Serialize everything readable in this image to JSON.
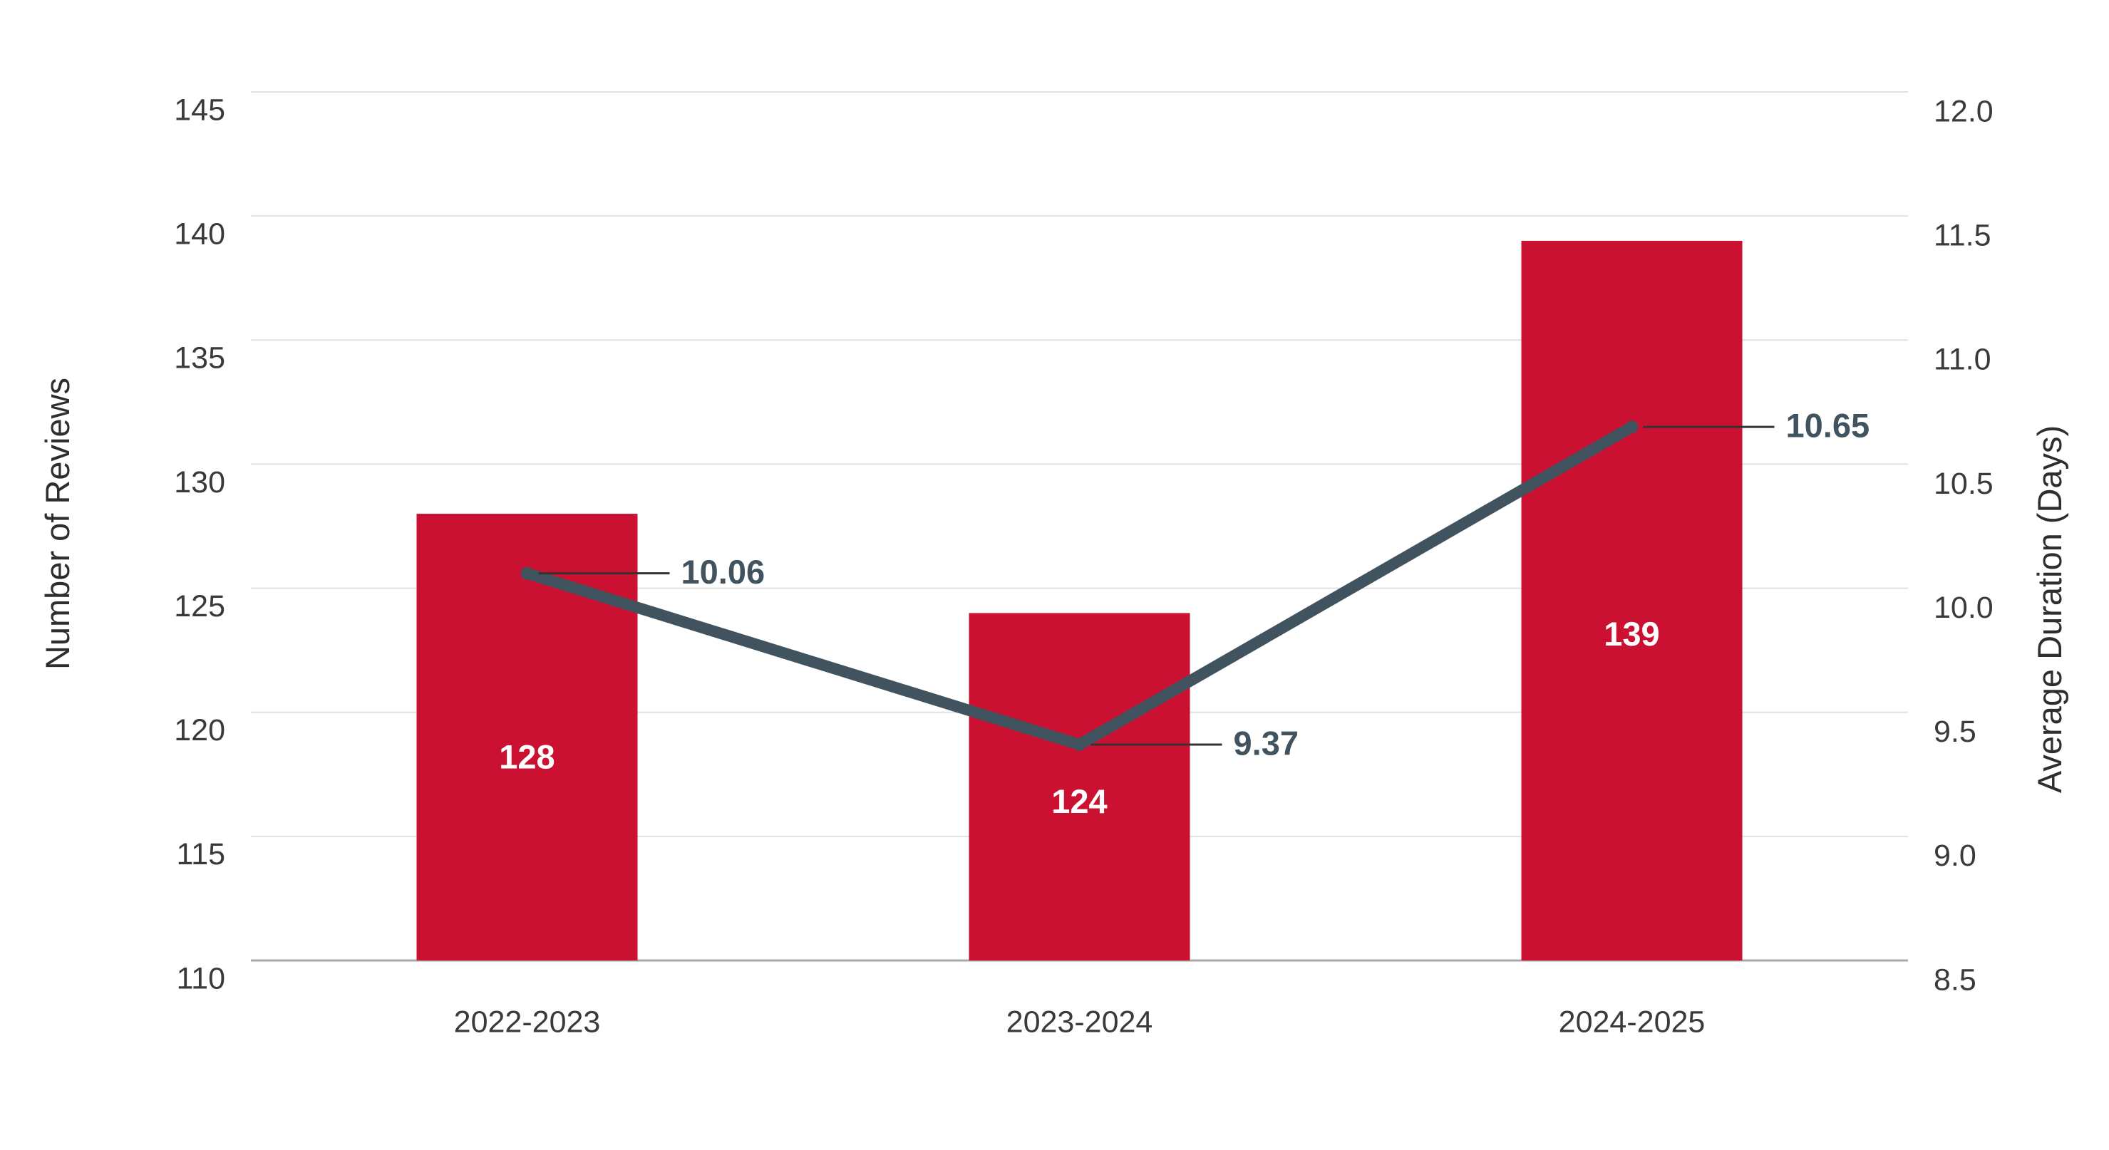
{
  "chart_data": {
    "type": "combo-bar-line",
    "categories": [
      "2022-2023",
      "2023-2024",
      "2024-2025"
    ],
    "series": [
      {
        "name": "Number of Reviews",
        "type": "bar",
        "axis": "left",
        "values": [
          128,
          124,
          139
        ],
        "labels": [
          "128",
          "124",
          "139"
        ],
        "color": "#ca1131"
      },
      {
        "name": "Average Duration (Days)",
        "type": "line",
        "axis": "right",
        "values": [
          10.06,
          9.37,
          10.65
        ],
        "labels": [
          "10.06",
          "9.37",
          "10.65"
        ],
        "color": "#41535f"
      }
    ],
    "left_axis": {
      "title": "Number of Reviews",
      "min": 110,
      "max": 145,
      "ticks": [
        110,
        115,
        120,
        125,
        130,
        135,
        140,
        145
      ],
      "tick_labels": [
        "110",
        "115",
        "120",
        "125",
        "130",
        "135",
        "140",
        "145"
      ]
    },
    "right_axis": {
      "title": "Average Duration (Days)",
      "min": 8.5,
      "max": 12.0,
      "ticks": [
        8.5,
        9.0,
        9.5,
        10.0,
        10.5,
        11.0,
        11.5,
        12.0
      ],
      "tick_labels": [
        "8.5",
        "9.0",
        "9.5",
        "10.0",
        "10.5",
        "11.0",
        "11.5",
        "12.0"
      ]
    },
    "grid": true,
    "legend": "none",
    "colors": {
      "bar": "#ca1131",
      "line": "#41535f",
      "gridline": "#e1e1e1",
      "axis_line": "#a8a8a8",
      "tick_text": "#3a3a3a",
      "leader_line": "#333333",
      "bar_label_text": "#ffffff",
      "line_label_text": "#41535f",
      "background": "#ffffff"
    }
  }
}
